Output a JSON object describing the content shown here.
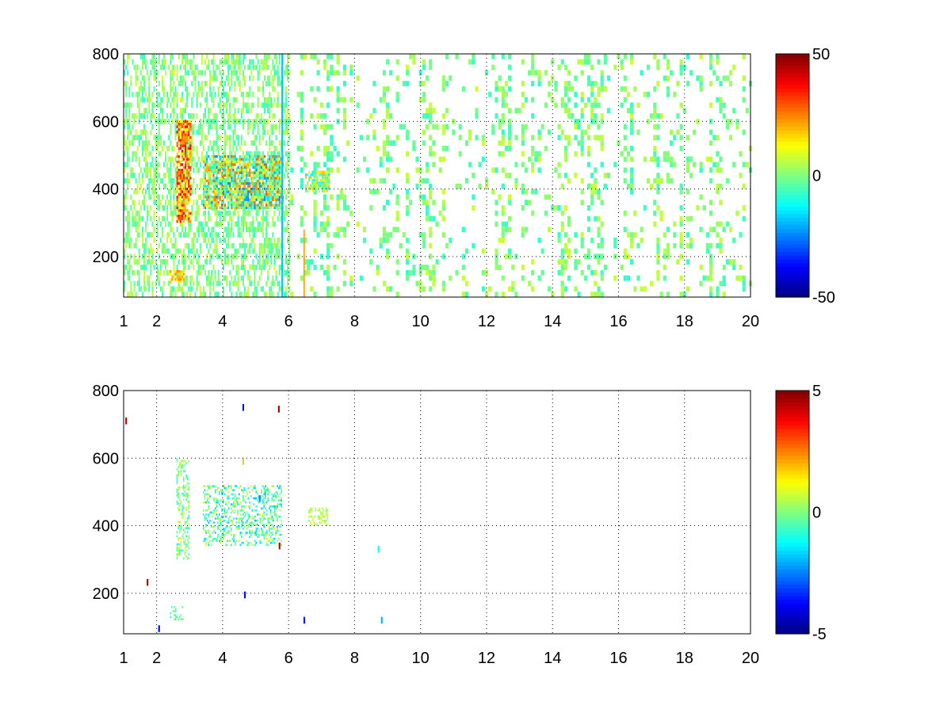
{
  "chart_data": [
    {
      "type": "heatmap",
      "title": "",
      "xlabel": "",
      "ylabel": "",
      "xlim": [
        1,
        20
      ],
      "ylim": [
        80,
        800
      ],
      "xticks": [
        "1",
        "2",
        "4",
        "6",
        "8",
        "10",
        "12",
        "14",
        "16",
        "18",
        "20"
      ],
      "yticks": [
        "200",
        "400",
        "600",
        "800"
      ],
      "grid": true,
      "colormap": "jet",
      "clim": [
        -50,
        50
      ],
      "colorbar_ticks": [
        "50",
        "0",
        "-50"
      ],
      "features": [
        {
          "x": [
            2.6,
            3.0
          ],
          "y": [
            300,
            600
          ],
          "value_range": [
            10,
            40
          ]
        },
        {
          "x": [
            3.4,
            5.8
          ],
          "y": [
            340,
            500
          ],
          "value_range": [
            -25,
            30
          ]
        },
        {
          "x": [
            6.5,
            7.2
          ],
          "y": [
            390,
            450
          ],
          "value_range": [
            -15,
            20
          ]
        },
        {
          "x": [
            2.4,
            2.8
          ],
          "y": [
            120,
            160
          ],
          "value_range": [
            10,
            25
          ]
        }
      ],
      "background_value_range": [
        -8,
        8
      ]
    },
    {
      "type": "heatmap",
      "title": "",
      "xlabel": "",
      "ylabel": "",
      "xlim": [
        1,
        20
      ],
      "ylim": [
        80,
        800
      ],
      "xticks": [
        "1",
        "2",
        "4",
        "6",
        "8",
        "10",
        "12",
        "14",
        "16",
        "18",
        "20"
      ],
      "yticks": [
        "200",
        "400",
        "600",
        "800"
      ],
      "grid": true,
      "colormap": "jet",
      "clim": [
        -5,
        5
      ],
      "colorbar_ticks": [
        "5",
        "0",
        "-5"
      ],
      "features": [
        {
          "x": [
            2.6,
            3.0
          ],
          "y": [
            300,
            600
          ],
          "value_range": [
            -1,
            1
          ]
        },
        {
          "x": [
            3.4,
            5.8
          ],
          "y": [
            340,
            520
          ],
          "value_range": [
            -2,
            1
          ]
        },
        {
          "x": [
            6.6,
            7.2
          ],
          "y": [
            400,
            450
          ],
          "value_range": [
            0,
            1
          ]
        },
        {
          "x": [
            2.4,
            2.8
          ],
          "y": [
            120,
            160
          ],
          "value_range": [
            -1,
            0
          ]
        }
      ]
    }
  ]
}
